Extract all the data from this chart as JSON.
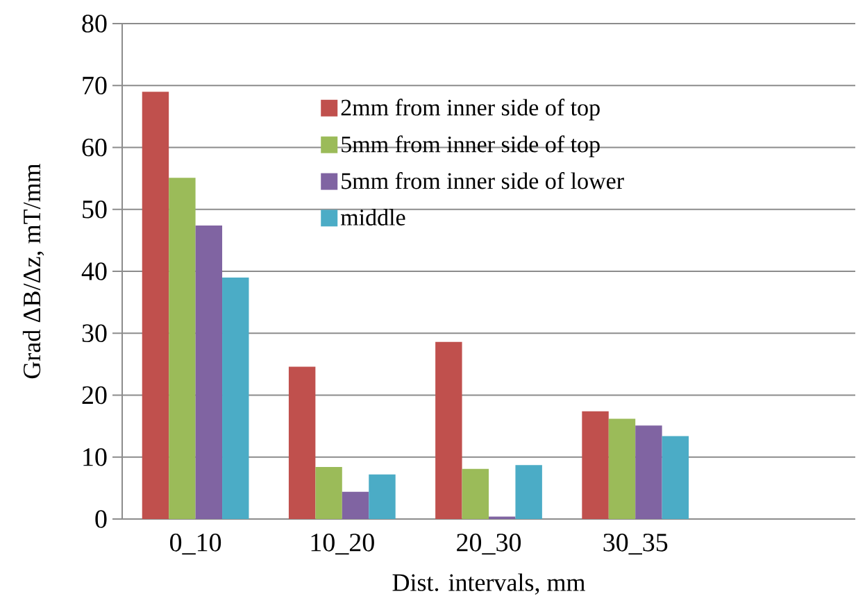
{
  "chart_data": {
    "type": "bar",
    "xlabel": "Dist. intervals, mm",
    "ylabel": "Grad ΔB/Δz, mT/mm",
    "categories": [
      "0_10",
      "10_20",
      "20_30",
      "30_35",
      null
    ],
    "series": [
      {
        "name": "2mm from inner side of top",
        "color": "#c0504d",
        "values": [
          69.0,
          24.6,
          28.6,
          17.4,
          null
        ]
      },
      {
        "name": "5mm from inner side of top",
        "color": "#9bbb59",
        "values": [
          55.1,
          8.4,
          8.1,
          16.2,
          null
        ]
      },
      {
        "name": "5mm from inner side of lower",
        "color": "#8064a2",
        "values": [
          47.4,
          4.4,
          0.4,
          15.1,
          null
        ]
      },
      {
        "name": "middle",
        "color": "#4bacc6",
        "values": [
          39.0,
          7.2,
          8.7,
          13.4,
          null
        ]
      }
    ],
    "ylim": [
      0,
      80
    ],
    "yticks": [
      0,
      10,
      20,
      30,
      40,
      50,
      60,
      70,
      80
    ],
    "grid": "y",
    "legend": "top"
  }
}
